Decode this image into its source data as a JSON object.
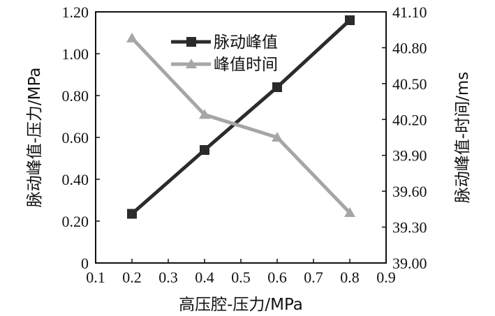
{
  "chart_data": {
    "type": "line",
    "title": "",
    "xlabel": "高压腔-压力/MPa",
    "ylabel_left": "脉动峰值-压力/MPa",
    "ylabel_right": "脉动峰值-时间/ms",
    "xlim": [
      0.1,
      0.9
    ],
    "ylim_left": [
      0,
      1.2
    ],
    "ylim_right": [
      39.0,
      41.1
    ],
    "x_ticks": [
      "0.1",
      "0.2",
      "0.3",
      "0.4",
      "0.5",
      "0.6",
      "0.7",
      "0.8",
      "0.9"
    ],
    "y_left_ticks": [
      "0",
      "0.20",
      "0.40",
      "0.60",
      "0.80",
      "1.00",
      "1.20"
    ],
    "y_right_ticks": [
      "39.00",
      "39.30",
      "39.60",
      "39.90",
      "40.20",
      "40.50",
      "40.80",
      "41.10"
    ],
    "grid": false,
    "legend_position": "top-center",
    "series": [
      {
        "name": "脉动峰值",
        "axis": "left",
        "marker": "square",
        "color": "#2b2b2b",
        "x": [
          0.2,
          0.4,
          0.6,
          0.8
        ],
        "y": [
          0.235,
          0.54,
          0.84,
          1.16
        ]
      },
      {
        "name": "峰值时间",
        "axis": "right",
        "marker": "triangle",
        "color": "#a6a6a6",
        "x": [
          0.2,
          0.4,
          0.6,
          0.8
        ],
        "y": [
          40.88,
          40.24,
          40.05,
          39.42
        ]
      }
    ]
  }
}
